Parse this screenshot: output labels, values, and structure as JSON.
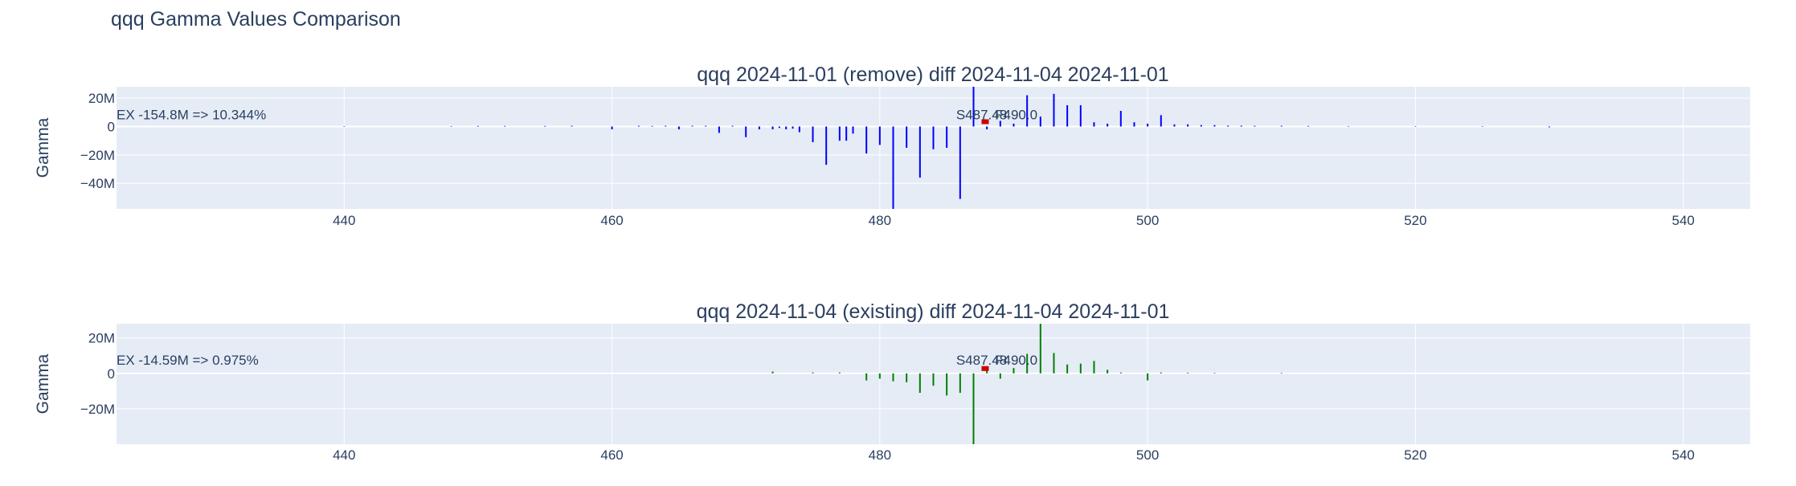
{
  "page": {
    "title": "qqq Gamma Values Comparison"
  },
  "chart_data": [
    {
      "type": "bar",
      "title": "qqq 2024-11-01 (remove) diff 2024-11-04 2024-11-01",
      "ylabel": "Gamma",
      "xlabel": "",
      "bar_color": "#0000ff",
      "xlim": [
        423,
        545
      ],
      "ylim": [
        -58,
        28
      ],
      "x_ticks": [
        440,
        460,
        480,
        500,
        520,
        540
      ],
      "x_tick_labels": [
        "440",
        "460",
        "480",
        "500",
        "520",
        "540"
      ],
      "y_ticks": [
        20,
        0,
        -20,
        -40
      ],
      "y_tick_labels": [
        "20M",
        "0",
        "−20M",
        "−40M"
      ],
      "grid": true,
      "annotations": [
        {
          "text": "EX -154.8M => 10.344%",
          "x": 423,
          "y": 4
        },
        {
          "text": "S487.48",
          "x": 485.7,
          "y": 4
        },
        {
          "text": "F490.0",
          "x": 488.6,
          "y": 4
        }
      ],
      "series": [
        {
          "x": [
            440,
            448,
            450,
            452,
            455,
            457,
            460,
            462,
            463,
            464,
            465,
            466,
            467,
            468,
            469,
            470,
            471,
            472,
            472.5,
            473,
            473.5,
            474,
            475,
            476,
            477,
            477.5,
            478,
            479,
            480,
            481,
            482,
            483,
            484,
            485,
            486,
            487,
            488,
            489,
            490,
            491,
            492,
            493,
            494,
            495,
            496,
            497,
            498,
            499,
            500,
            501,
            502,
            503,
            504,
            505,
            506,
            507,
            508,
            510,
            512,
            515,
            520,
            525,
            530
          ],
          "y": [
            0.3,
            0.3,
            0.4,
            0.4,
            0.4,
            0.5,
            -2,
            0.5,
            0.4,
            0.5,
            -2,
            0.5,
            0.5,
            -4.5,
            0.5,
            -7.5,
            -2,
            -2,
            -1,
            -2,
            -1.5,
            -4,
            -11,
            -27,
            -10,
            -10,
            -5,
            -19,
            -13,
            -58,
            -15,
            -36,
            -16,
            -15,
            -51,
            28,
            -2,
            4,
            2,
            22,
            7,
            23,
            15,
            15,
            3,
            2,
            11,
            3,
            2,
            8,
            1.5,
            1.5,
            1,
            1,
            0.6,
            0.6,
            0.5,
            0.5,
            0.4,
            0.3,
            0.3,
            0.3,
            -0.5
          ]
        }
      ]
    },
    {
      "type": "bar",
      "title": "qqq 2024-11-04 (existing) diff 2024-11-04 2024-11-01",
      "ylabel": "Gamma",
      "xlabel": "",
      "bar_color": "#008000",
      "xlim": [
        423,
        545
      ],
      "ylim": [
        -40,
        28
      ],
      "x_ticks": [
        440,
        460,
        480,
        500,
        520,
        540
      ],
      "x_tick_labels": [
        "440",
        "460",
        "480",
        "500",
        "520",
        "540"
      ],
      "y_ticks": [
        20,
        0,
        -20
      ],
      "y_tick_labels": [
        "20M",
        "0",
        "−20M"
      ],
      "grid": true,
      "annotations": [
        {
          "text": "EX -14.59M => 0.975%",
          "x": 423,
          "y": 4
        },
        {
          "text": "S487.48",
          "x": 485.7,
          "y": 4
        },
        {
          "text": "F490.0",
          "x": 488.6,
          "y": 4
        }
      ],
      "series": [
        {
          "x": [
            472,
            475,
            477,
            479,
            480,
            481,
            482,
            483,
            484,
            485,
            486,
            487,
            488,
            489,
            490,
            491,
            492,
            493,
            494,
            495,
            496,
            497,
            498,
            500,
            501,
            503,
            505,
            510
          ],
          "y": [
            1,
            0.5,
            0.5,
            -4,
            -3,
            -4.5,
            -5,
            -11,
            -7,
            -12.5,
            -11,
            -40,
            3,
            -3,
            3,
            11,
            28,
            11.5,
            5,
            5.5,
            7,
            2,
            0.5,
            -4,
            0.5,
            0.4,
            0.3,
            0.3
          ]
        }
      ]
    }
  ]
}
